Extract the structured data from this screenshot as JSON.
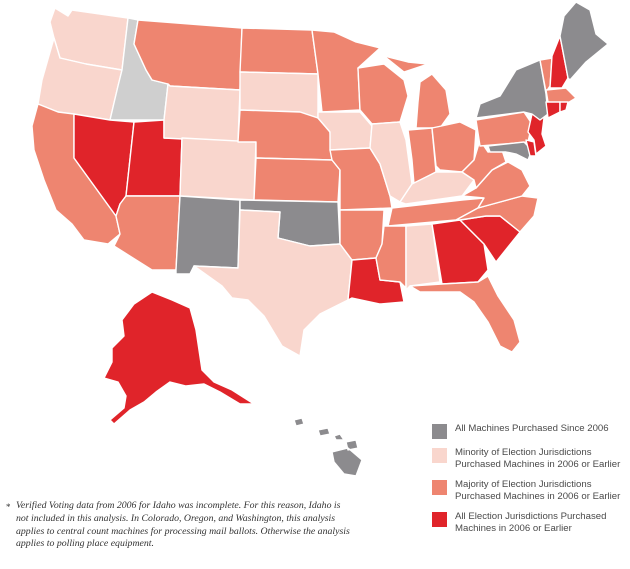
{
  "colors": {
    "all_since_2006": "#8c8b8e",
    "minority_2006_or_earlier": "#f9d6cd",
    "majority_2006_or_earlier": "#ee8570",
    "all_2006_or_earlier": "#e0242a",
    "no_data": "#cfcfcf"
  },
  "legend": {
    "items": [
      {
        "key": "all_since_2006",
        "label": "All Machines Purchased Since 2006"
      },
      {
        "key": "minority_2006_or_earlier",
        "label": "Minority of Election Jurisdictions Purchased Machines in 2006 or Earlier"
      },
      {
        "key": "majority_2006_or_earlier",
        "label": "Majority of Election Jurisdictions Purchased Machines in 2006 or Earlier"
      },
      {
        "key": "all_2006_or_earlier",
        "label": "All Election Jurisdictions Purchased Machines in 2006 or Earlier"
      }
    ]
  },
  "footnote": {
    "marker": "*",
    "text": "Verified Voting data from 2006 for Idaho was incomplete. For this reason, Idaho is not included in this analysis. In Colorado, Oregon, and Washington, this analysis applies to central count machines for processing mail ballots. Otherwise the analysis applies to polling place equipment."
  },
  "states": {
    "WA": "minority_2006_or_earlier",
    "OR": "minority_2006_or_earlier",
    "CA": "majority_2006_or_earlier",
    "ID": "no_data",
    "NV": "all_2006_or_earlier",
    "UT": "all_2006_or_earlier",
    "AZ": "majority_2006_or_earlier",
    "MT": "majority_2006_or_earlier",
    "WY": "minority_2006_or_earlier",
    "CO": "minority_2006_or_earlier",
    "NM": "all_since_2006",
    "ND": "majority_2006_or_earlier",
    "SD": "minority_2006_or_earlier",
    "NE": "majority_2006_or_earlier",
    "KS": "majority_2006_or_earlier",
    "OK": "all_since_2006",
    "TX": "minority_2006_or_earlier",
    "MN": "majority_2006_or_earlier",
    "IA": "minority_2006_or_earlier",
    "MO": "majority_2006_or_earlier",
    "AR": "majority_2006_or_earlier",
    "LA": "all_2006_or_earlier",
    "WI": "majority_2006_or_earlier",
    "IL": "minority_2006_or_earlier",
    "MI": "majority_2006_or_earlier",
    "IN": "majority_2006_or_earlier",
    "OH": "majority_2006_or_earlier",
    "KY": "minority_2006_or_earlier",
    "TN": "majority_2006_or_earlier",
    "MS": "majority_2006_or_earlier",
    "AL": "minority_2006_or_earlier",
    "GA": "all_2006_or_earlier",
    "FL": "majority_2006_or_earlier",
    "SC": "all_2006_or_earlier",
    "NC": "majority_2006_or_earlier",
    "VA": "majority_2006_or_earlier",
    "WV": "majority_2006_or_earlier",
    "PA": "majority_2006_or_earlier",
    "NY": "all_since_2006",
    "VT": "majority_2006_or_earlier",
    "NH": "all_2006_or_earlier",
    "ME": "all_since_2006",
    "MA": "majority_2006_or_earlier",
    "CT": "all_2006_or_earlier",
    "RI": "all_2006_or_earlier",
    "NJ": "all_2006_or_earlier",
    "DE": "all_2006_or_earlier",
    "MD": "all_since_2006",
    "AK": "all_2006_or_earlier",
    "HI": "all_since_2006"
  }
}
